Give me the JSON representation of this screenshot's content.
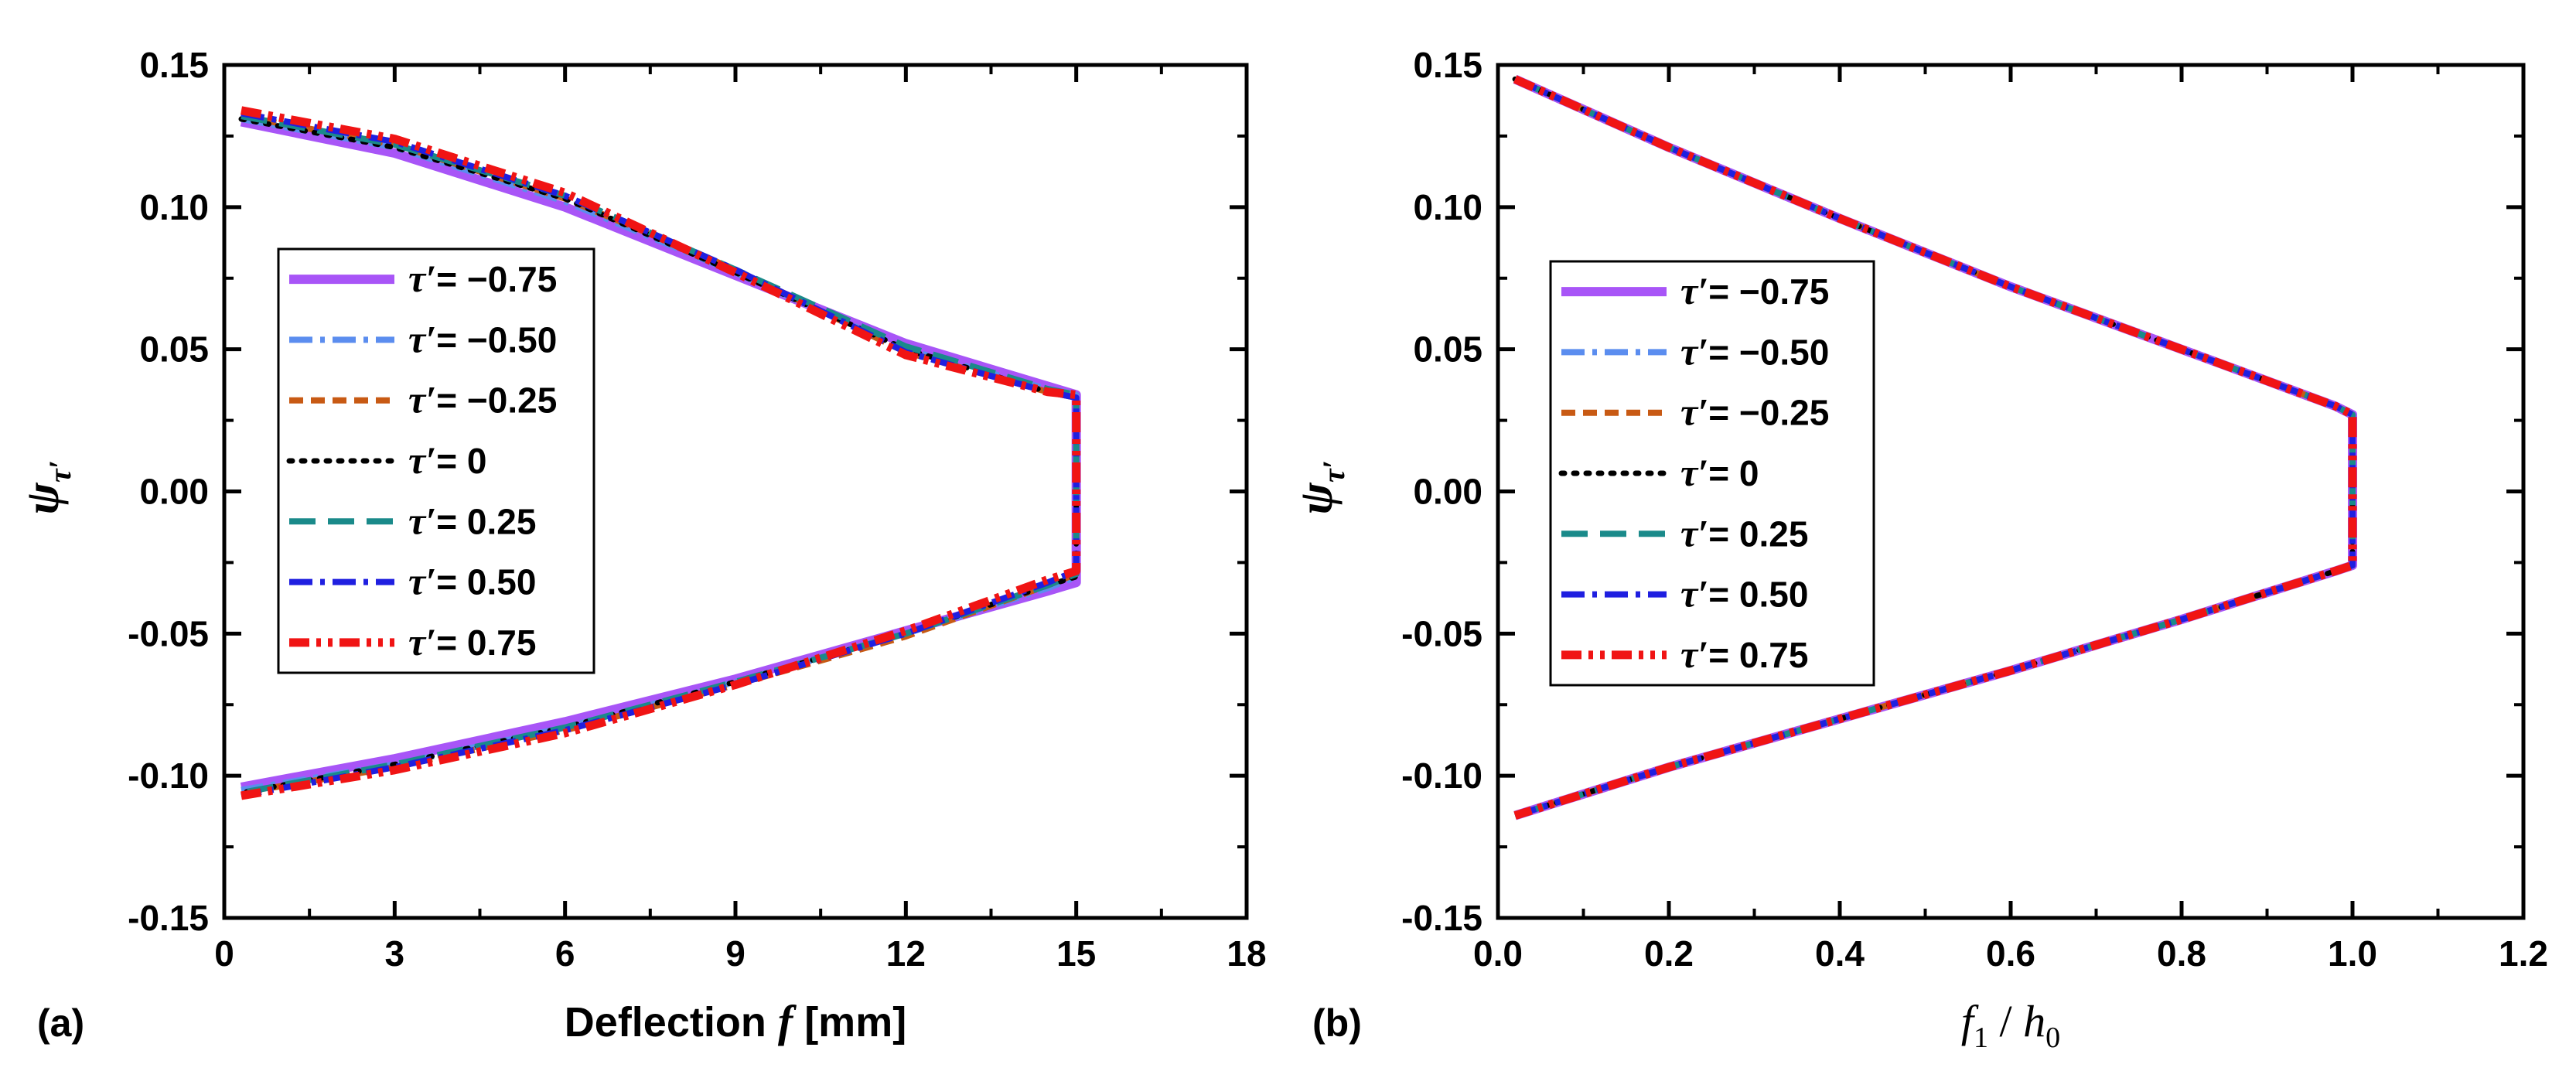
{
  "chart_data": [
    {
      "type": "line",
      "panel_label": "(a)",
      "xlabel": "Deflection",
      "xlabel_symbol": "f",
      "xlabel_unit": "[mm]",
      "ylabel_symbol": "ψ",
      "ylabel_sub": "τ′",
      "xlim": [
        0,
        18
      ],
      "ylim": [
        -0.15,
        0.15
      ],
      "x_ticks": [
        "0",
        "3",
        "6",
        "9",
        "12",
        "15",
        "18"
      ],
      "y_ticks": [
        "0.15",
        "0.10",
        "0.05",
        "0.00",
        "-0.05",
        "-0.10",
        "-0.15"
      ],
      "x_tick_values": [
        0,
        3,
        6,
        9,
        12,
        15,
        18
      ],
      "y_tick_values": [
        0.15,
        0.1,
        0.05,
        0.0,
        -0.05,
        -0.1,
        -0.15
      ],
      "legend_position": "left-center",
      "series": [
        {
          "name": "τ′ = −0.75",
          "label_value": "= −0.75",
          "color": "#a855f7",
          "dash": "solid",
          "x": [
            0.3,
            3,
            6,
            9,
            12,
            14.5,
            15,
            15,
            14.5,
            12,
            9,
            6,
            3,
            0.3
          ],
          "y": [
            0.13,
            0.119,
            0.1,
            0.076,
            0.052,
            0.037,
            0.034,
            -0.032,
            -0.035,
            -0.049,
            -0.066,
            -0.081,
            -0.094,
            -0.104
          ]
        },
        {
          "name": "τ′ = −0.50",
          "label_value": "= −0.50",
          "color": "#5b8def",
          "dash": "dashdot",
          "x": [
            0.3,
            3,
            6,
            9,
            12,
            14.5,
            15,
            15,
            14.5,
            12,
            9,
            6,
            3,
            0.3
          ],
          "y": [
            0.131,
            0.121,
            0.102,
            0.077,
            0.05,
            0.036,
            0.034,
            -0.03,
            -0.034,
            -0.05,
            -0.067,
            -0.083,
            -0.096,
            -0.105
          ]
        },
        {
          "name": "τ′ = −0.25",
          "label_value": "= −0.25",
          "color": "#c85a14",
          "dash": "dash",
          "x": [
            0.3,
            3,
            6,
            9,
            12,
            14.5,
            15,
            15,
            14.5,
            12,
            9,
            6,
            3,
            0.3
          ],
          "y": [
            0.132,
            0.122,
            0.103,
            0.078,
            0.049,
            0.035,
            0.033,
            -0.029,
            -0.033,
            -0.051,
            -0.068,
            -0.084,
            -0.097,
            -0.106
          ]
        },
        {
          "name": "τ′ = 0",
          "label_value": "= 0",
          "color": "#000000",
          "dash": "dot",
          "x": [
            0.3,
            3,
            6,
            9,
            12,
            14.5,
            15,
            15,
            14.5,
            12,
            9,
            6,
            3,
            0.3
          ],
          "y": [
            0.131,
            0.121,
            0.103,
            0.077,
            0.05,
            0.035,
            0.033,
            -0.03,
            -0.033,
            -0.05,
            -0.067,
            -0.083,
            -0.096,
            -0.106
          ]
        },
        {
          "name": "τ′ = 0.25",
          "label_value": "= 0.25",
          "color": "#1a8a8a",
          "dash": "longdash",
          "x": [
            0.3,
            3,
            6,
            9,
            12,
            14.5,
            15,
            15,
            14.5,
            12,
            9,
            6,
            3,
            0.3
          ],
          "y": [
            0.132,
            0.122,
            0.104,
            0.078,
            0.051,
            0.036,
            0.034,
            -0.029,
            -0.033,
            -0.05,
            -0.067,
            -0.083,
            -0.096,
            -0.106
          ]
        },
        {
          "name": "τ′ = 0.50",
          "label_value": "= 0.50",
          "color": "#1f1fe0",
          "dash": "dashdot",
          "x": [
            0.3,
            3,
            6,
            9,
            12,
            14.5,
            15,
            15,
            14.5,
            12,
            9,
            6,
            3,
            0.3
          ],
          "y": [
            0.133,
            0.123,
            0.104,
            0.078,
            0.049,
            0.035,
            0.033,
            -0.028,
            -0.032,
            -0.05,
            -0.068,
            -0.084,
            -0.097,
            -0.107
          ]
        },
        {
          "name": "τ′ = 0.75",
          "label_value": "= 0.75",
          "color": "#f01414",
          "dash": "dashdotdot",
          "x": [
            0.3,
            3,
            6,
            9,
            12,
            14.5,
            15,
            15,
            14.5,
            12,
            9,
            6,
            3,
            0.3
          ],
          "y": [
            0.134,
            0.124,
            0.105,
            0.077,
            0.048,
            0.035,
            0.034,
            -0.028,
            -0.031,
            -0.049,
            -0.068,
            -0.085,
            -0.098,
            -0.107
          ]
        }
      ]
    },
    {
      "type": "line",
      "panel_label": "(b)",
      "xlabel_symbol": "f",
      "xlabel_symbol_sub": "1",
      "xlabel_sep": "/",
      "xlabel_symbol2": "h",
      "xlabel_symbol2_sub": "0",
      "ylabel_symbol": "ψ",
      "ylabel_sub": "τ′",
      "xlim": [
        0,
        1.2
      ],
      "ylim": [
        -0.15,
        0.15
      ],
      "x_ticks": [
        "0.0",
        "0.2",
        "0.4",
        "0.6",
        "0.8",
        "1.0",
        "1.2"
      ],
      "y_ticks": [
        "0.15",
        "0.10",
        "0.05",
        "0.00",
        "-0.05",
        "-0.10",
        "-0.15"
      ],
      "x_tick_values": [
        0.0,
        0.2,
        0.4,
        0.6,
        0.8,
        1.0,
        1.2
      ],
      "y_tick_values": [
        0.15,
        0.1,
        0.05,
        0.0,
        -0.05,
        -0.1,
        -0.15
      ],
      "legend_position": "left-center",
      "series": [
        {
          "name": "τ′ = −0.75",
          "label_value": "= −0.75",
          "color": "#a855f7",
          "dash": "solid",
          "x": [
            0.02,
            0.2,
            0.4,
            0.6,
            0.8,
            0.98,
            1.0,
            1.0,
            0.98,
            0.8,
            0.6,
            0.4,
            0.2,
            0.02
          ],
          "y": [
            0.145,
            0.121,
            0.096,
            0.072,
            0.05,
            0.03,
            0.027,
            -0.026,
            -0.028,
            -0.045,
            -0.063,
            -0.08,
            -0.097,
            -0.114
          ]
        },
        {
          "name": "τ′ = −0.50",
          "label_value": "= −0.50",
          "color": "#5b8def",
          "dash": "dashdot",
          "x": [
            0.02,
            0.2,
            0.4,
            0.6,
            0.8,
            0.98,
            1.0,
            1.0,
            0.98,
            0.8,
            0.6,
            0.4,
            0.2,
            0.02
          ],
          "y": [
            0.145,
            0.121,
            0.096,
            0.072,
            0.05,
            0.03,
            0.027,
            -0.026,
            -0.028,
            -0.045,
            -0.063,
            -0.08,
            -0.097,
            -0.114
          ]
        },
        {
          "name": "τ′ = −0.25",
          "label_value": "= −0.25",
          "color": "#c85a14",
          "dash": "dash",
          "x": [
            0.02,
            0.2,
            0.4,
            0.6,
            0.8,
            0.98,
            1.0,
            1.0,
            0.98,
            0.8,
            0.6,
            0.4,
            0.2,
            0.02
          ],
          "y": [
            0.145,
            0.121,
            0.096,
            0.072,
            0.05,
            0.03,
            0.027,
            -0.026,
            -0.028,
            -0.045,
            -0.063,
            -0.08,
            -0.097,
            -0.114
          ]
        },
        {
          "name": "τ′ = 0",
          "label_value": "= 0",
          "color": "#000000",
          "dash": "dot",
          "x": [
            0.02,
            0.2,
            0.4,
            0.6,
            0.8,
            0.98,
            1.0,
            1.0,
            0.98,
            0.8,
            0.6,
            0.4,
            0.2,
            0.02
          ],
          "y": [
            0.145,
            0.121,
            0.096,
            0.072,
            0.05,
            0.03,
            0.027,
            -0.026,
            -0.028,
            -0.045,
            -0.063,
            -0.08,
            -0.097,
            -0.114
          ]
        },
        {
          "name": "τ′ = 0.25",
          "label_value": "= 0.25",
          "color": "#1a8a8a",
          "dash": "longdash",
          "x": [
            0.02,
            0.2,
            0.4,
            0.6,
            0.8,
            0.98,
            1.0,
            1.0,
            0.98,
            0.8,
            0.6,
            0.4,
            0.2,
            0.02
          ],
          "y": [
            0.145,
            0.121,
            0.096,
            0.072,
            0.05,
            0.03,
            0.027,
            -0.026,
            -0.028,
            -0.045,
            -0.063,
            -0.08,
            -0.097,
            -0.114
          ]
        },
        {
          "name": "τ′ = 0.50",
          "label_value": "= 0.50",
          "color": "#1f1fe0",
          "dash": "dashdot",
          "x": [
            0.02,
            0.2,
            0.4,
            0.6,
            0.8,
            0.98,
            1.0,
            1.0,
            0.98,
            0.8,
            0.6,
            0.4,
            0.2,
            0.02
          ],
          "y": [
            0.145,
            0.121,
            0.096,
            0.072,
            0.05,
            0.03,
            0.027,
            -0.026,
            -0.028,
            -0.045,
            -0.063,
            -0.08,
            -0.097,
            -0.114
          ]
        },
        {
          "name": "τ′ = 0.75",
          "label_value": "= 0.75",
          "color": "#f01414",
          "dash": "dashdotdot",
          "x": [
            0.02,
            0.2,
            0.4,
            0.6,
            0.8,
            0.98,
            1.0,
            1.0,
            0.98,
            0.8,
            0.6,
            0.4,
            0.2,
            0.02
          ],
          "y": [
            0.145,
            0.121,
            0.096,
            0.072,
            0.05,
            0.03,
            0.027,
            -0.026,
            -0.028,
            -0.045,
            -0.063,
            -0.08,
            -0.097,
            -0.114
          ]
        }
      ]
    }
  ]
}
